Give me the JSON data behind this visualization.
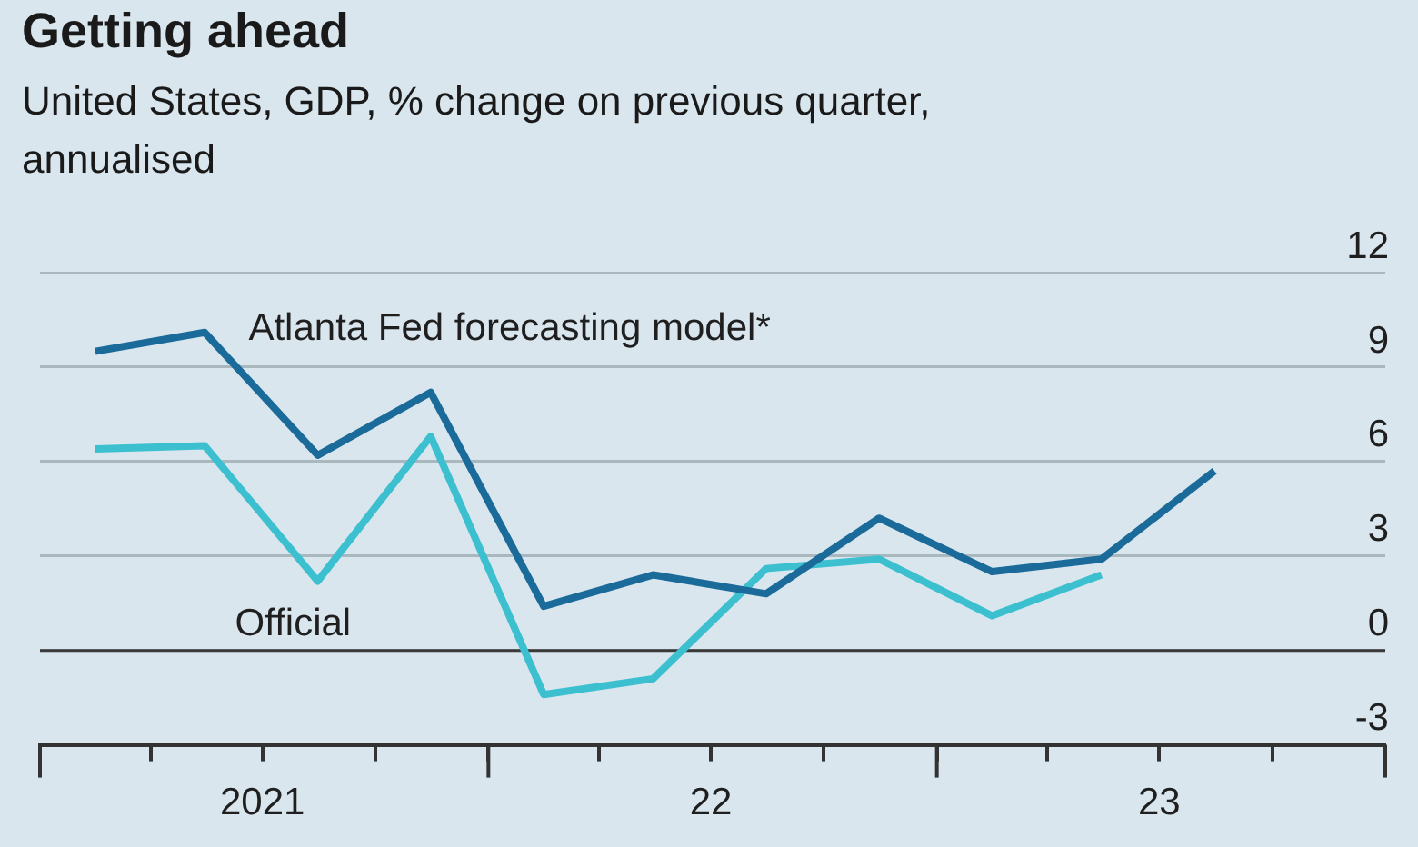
{
  "chart_data": {
    "type": "line",
    "title": "Getting ahead",
    "subtitle": "United States, GDP, % change on previous quarter, annualised",
    "x": [
      "2021-02-15",
      "2021-05-15",
      "2021-08-15",
      "2021-11-15",
      "2022-02-15",
      "2022-05-15",
      "2022-08-15",
      "2022-11-15",
      "2023-02-15",
      "2023-05-15",
      "2023-08-15"
    ],
    "series": [
      {
        "name": "Atlanta Fed forecasting model*",
        "color": "#1a6a9a",
        "values": [
          9.5,
          10.1,
          6.2,
          8.2,
          1.4,
          2.4,
          1.8,
          4.2,
          2.5,
          2.9,
          5.7
        ]
      },
      {
        "name": "Official",
        "color": "#3cc0d0",
        "values": [
          6.4,
          6.5,
          2.2,
          6.8,
          -1.4,
          -0.9,
          2.6,
          2.9,
          1.1,
          2.4,
          null
        ]
      }
    ],
    "xlim": [
      "2021-01-01",
      "2024-01-01"
    ],
    "xticks": [
      {
        "value": "2021-01-01",
        "label": null
      },
      {
        "value": "2021-04-01",
        "label": null
      },
      {
        "value": "2021-07-01",
        "label": "2021"
      },
      {
        "value": "2021-10-01",
        "label": null
      },
      {
        "value": "2022-01-01",
        "label": null
      },
      {
        "value": "2022-04-01",
        "label": null
      },
      {
        "value": "2022-07-01",
        "label": "22"
      },
      {
        "value": "2022-10-01",
        "label": null
      },
      {
        "value": "2023-01-01",
        "label": null
      },
      {
        "value": "2023-04-01",
        "label": null
      },
      {
        "value": "2023-07-01",
        "label": "23"
      },
      {
        "value": "2023-10-01",
        "label": null
      },
      {
        "value": "2024-01-01",
        "label": null
      }
    ],
    "ylim": [
      -3,
      12
    ],
    "yticks": [
      -3,
      0,
      3,
      6,
      9,
      12
    ],
    "ref_lines": [
      {
        "axis": "y",
        "value": 0,
        "color": "#3a3a3a"
      }
    ],
    "grid": "y",
    "legend": false,
    "marker": "none",
    "line_style": "solid"
  }
}
